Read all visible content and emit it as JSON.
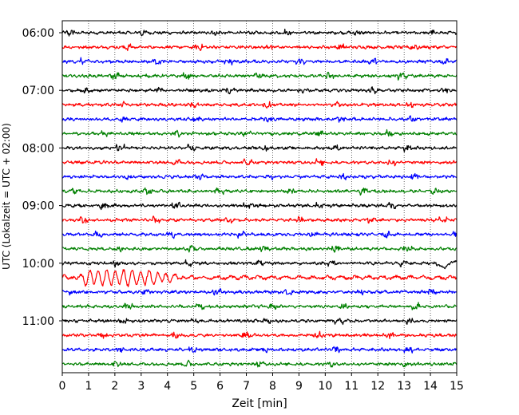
{
  "chart_data": {
    "type": "line",
    "title": "",
    "xlabel": "Zeit  [min]",
    "ylabel": "UTC (Lokalzeit = UTC + 02:00)",
    "xlim": [
      0,
      15
    ],
    "x_ticks": [
      0,
      1,
      2,
      3,
      4,
      5,
      6,
      7,
      8,
      9,
      10,
      11,
      12,
      13,
      14,
      15
    ],
    "y_tick_labels": [
      "06:00",
      "07:00",
      "08:00",
      "09:00",
      "10:00",
      "11:00"
    ],
    "grid": "vertical dotted lines at each minute",
    "trace_interval_min": 15,
    "start_time": "06:00",
    "trace_count": 24,
    "trace_colors": [
      "#000000",
      "#ff0000",
      "#0000ff",
      "#008000"
    ],
    "events": [
      {
        "trace_start": "10:00",
        "description": "disturbance near end",
        "x_range": [
          13.8,
          15
        ]
      },
      {
        "trace_start": "10:15",
        "description": "large oscillations",
        "x_range": [
          0,
          5
        ]
      }
    ]
  }
}
